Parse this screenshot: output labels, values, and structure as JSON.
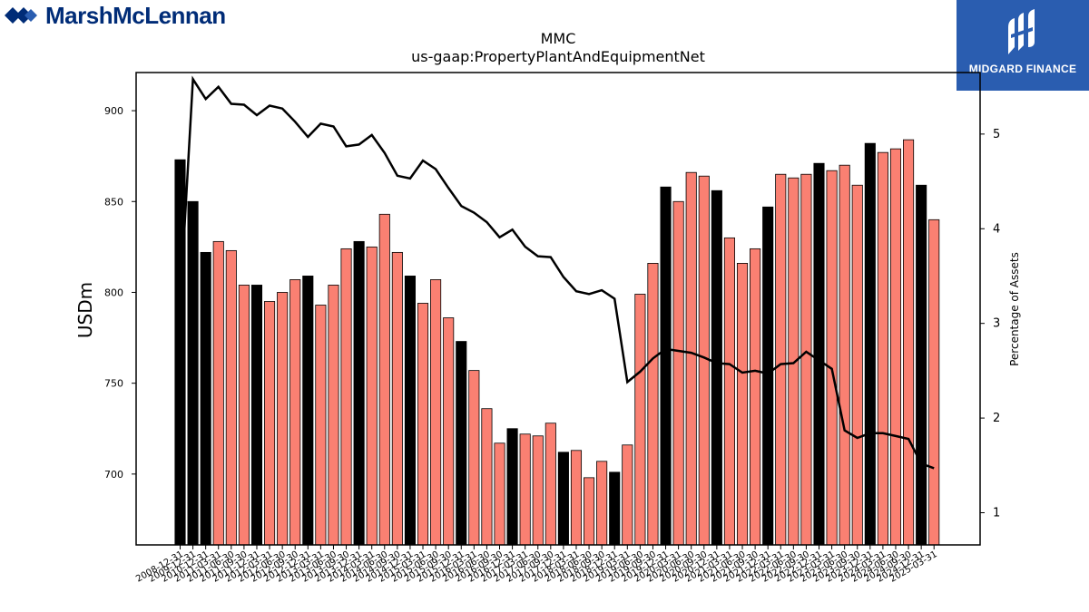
{
  "brand": {
    "left_name": "MarshMcLennan",
    "right_name": "MIDGARD FINANCE",
    "brand_color": "#002c77",
    "panel_color": "#2a5db0"
  },
  "chart_data": {
    "type": "bar",
    "title": "MMC",
    "subtitle": "us-gaap:PropertyPlantAndEquipmentNet",
    "ylabel": "USDm",
    "y2label": "Percentage of Assets",
    "ylim": [
      661,
      921
    ],
    "y2lim": [
      0.66,
      5.65
    ],
    "yticks": [
      700,
      750,
      800,
      850,
      900
    ],
    "y2ticks": [
      1,
      2,
      3,
      4,
      5
    ],
    "grid": false,
    "colors": {
      "annual": "#000000",
      "quarterly": "#fa8072",
      "line": "#000000"
    },
    "categories": [
      "2008-12-31",
      "2009-12-31",
      "2010-12-31",
      "2011-03-31",
      "2011-06-30",
      "2011-09-30",
      "2011-12-31",
      "2012-03-31",
      "2012-06-30",
      "2012-09-30",
      "2012-12-31",
      "2013-03-31",
      "2013-06-30",
      "2013-09-30",
      "2013-12-31",
      "2014-03-31",
      "2014-06-30",
      "2014-09-30",
      "2014-12-31",
      "2015-03-31",
      "2015-06-30",
      "2015-09-30",
      "2015-12-31",
      "2016-03-31",
      "2016-06-30",
      "2016-09-30",
      "2016-12-31",
      "2017-03-31",
      "2017-06-30",
      "2017-09-30",
      "2017-12-31",
      "2018-03-31",
      "2018-06-30",
      "2018-09-30",
      "2018-12-31",
      "2019-03-31",
      "2019-06-30",
      "2019-09-30",
      "2019-12-31",
      "2020-03-31",
      "2020-06-30",
      "2020-09-30",
      "2020-12-31",
      "2021-03-31",
      "2021-06-30",
      "2021-09-30",
      "2021-12-31",
      "2022-03-31",
      "2022-06-30",
      "2022-09-30",
      "2022-12-31",
      "2023-03-31",
      "2023-06-30",
      "2023-09-30",
      "2023-12-31",
      "2024-03-31",
      "2024-06-30",
      "2024-09-30",
      "2024-12-31",
      "2025-03-31"
    ],
    "series": [
      {
        "kind": "bar",
        "values": [
          873,
          850,
          822,
          828,
          823,
          804,
          804,
          795,
          800,
          807,
          809,
          793,
          804,
          824,
          828,
          825,
          843,
          822,
          809,
          794,
          807,
          786,
          773,
          757,
          736,
          717,
          725,
          722,
          721,
          728,
          712,
          713,
          698,
          707,
          701,
          716,
          799,
          816,
          858,
          850,
          866,
          864,
          856,
          830,
          816,
          824,
          847,
          865,
          863,
          865,
          871,
          867,
          870,
          859,
          882,
          877,
          879,
          884,
          859,
          840
        ],
        "annual": [
          true,
          true,
          true,
          false,
          false,
          false,
          true,
          false,
          false,
          false,
          true,
          false,
          false,
          false,
          true,
          false,
          false,
          false,
          true,
          false,
          false,
          false,
          true,
          false,
          false,
          false,
          true,
          false,
          false,
          false,
          true,
          false,
          false,
          false,
          true,
          false,
          false,
          false,
          true,
          false,
          false,
          false,
          true,
          false,
          false,
          false,
          true,
          false,
          false,
          false,
          true,
          false,
          false,
          false,
          true,
          false,
          false,
          false,
          true,
          false
        ]
      },
      {
        "kind": "line",
        "axis": "right",
        "values": [
          3.2,
          5.58,
          5.37,
          5.5,
          5.32,
          5.31,
          5.2,
          5.3,
          5.27,
          5.13,
          4.97,
          5.11,
          5.08,
          4.87,
          4.89,
          4.99,
          4.8,
          4.56,
          4.53,
          4.72,
          4.63,
          4.43,
          4.24,
          4.17,
          4.07,
          3.91,
          3.99,
          3.81,
          3.71,
          3.7,
          3.49,
          3.34,
          3.31,
          3.35,
          3.26,
          2.38,
          2.49,
          2.63,
          2.73,
          2.71,
          2.69,
          2.64,
          2.58,
          2.57,
          2.48,
          2.5,
          2.47,
          2.57,
          2.58,
          2.7,
          2.61,
          2.52,
          1.87,
          1.79,
          1.84,
          1.84,
          1.81,
          1.78,
          1.52,
          1.47
        ]
      }
    ]
  }
}
